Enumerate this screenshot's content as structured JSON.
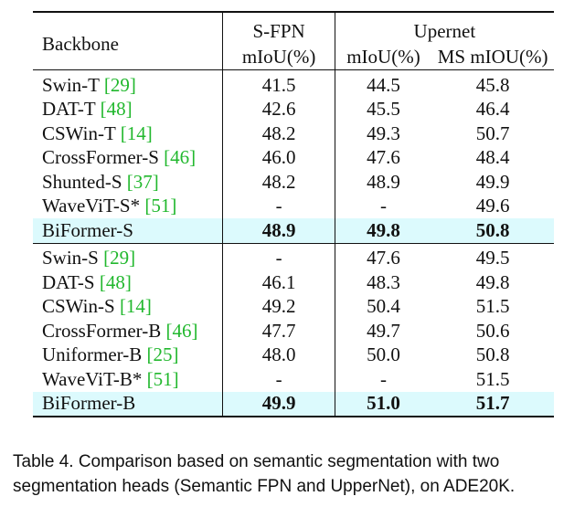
{
  "table": {
    "header": {
      "backbone": "Backbone",
      "sfpn_group": "S-FPN",
      "upernet_group": "Upernet",
      "sfpn_miou": "mIoU(%)",
      "upernet_miou": "mIoU(%)",
      "upernet_ms_miou": "MS mIOU(%)"
    },
    "group_s": [
      {
        "name": "Swin-T ",
        "ref": "[29]",
        "sfpn": "41.5",
        "upernet": "44.5",
        "ms": "45.8"
      },
      {
        "name": "DAT-T ",
        "ref": "[48]",
        "sfpn": "42.6",
        "upernet": "45.5",
        "ms": "46.4"
      },
      {
        "name": "CSWin-T ",
        "ref": "[14]",
        "sfpn": "48.2",
        "upernet": "49.3",
        "ms": "50.7"
      },
      {
        "name": "CrossFormer-S ",
        "ref": "[46]",
        "sfpn": "46.0",
        "upernet": "47.6",
        "ms": "48.4"
      },
      {
        "name": "Shunted-S ",
        "ref": "[37]",
        "sfpn": "48.2",
        "upernet": "48.9",
        "ms": "49.9"
      },
      {
        "name": "WaveViT-S* ",
        "ref": "[51]",
        "sfpn": "-",
        "upernet": "-",
        "ms": "49.6"
      },
      {
        "name": "BiFormer-S",
        "ref": "",
        "sfpn": "48.9",
        "upernet": "49.8",
        "ms": "50.8"
      }
    ],
    "group_b": [
      {
        "name": "Swin-S ",
        "ref": "[29]",
        "sfpn": "-",
        "upernet": "47.6",
        "ms": "49.5"
      },
      {
        "name": "DAT-S ",
        "ref": "[48]",
        "sfpn": "46.1",
        "upernet": "48.3",
        "ms": "49.8"
      },
      {
        "name": "CSWin-S ",
        "ref": "[14]",
        "sfpn": "49.2",
        "upernet": "50.4",
        "ms": "51.5"
      },
      {
        "name": "CrossFormer-B ",
        "ref": "[46]",
        "sfpn": "47.7",
        "upernet": "49.7",
        "ms": "50.6"
      },
      {
        "name": "Uniformer-B ",
        "ref": "[25]",
        "sfpn": "48.0",
        "upernet": "50.0",
        "ms": "50.8"
      },
      {
        "name": "WaveViT-B* ",
        "ref": "[51]",
        "sfpn": "-",
        "upernet": "-",
        "ms": "51.5"
      },
      {
        "name": "BiFormer-B",
        "ref": "",
        "sfpn": "49.9",
        "upernet": "51.0",
        "ms": "51.7"
      }
    ],
    "highlight_color": "#dcfafd",
    "reference_color": "#22b82e"
  },
  "caption": {
    "text": "Table 4.  Comparison based on semantic segmentation with two segmentation heads (Semantic FPN and UpperNet), on ADE20K."
  }
}
